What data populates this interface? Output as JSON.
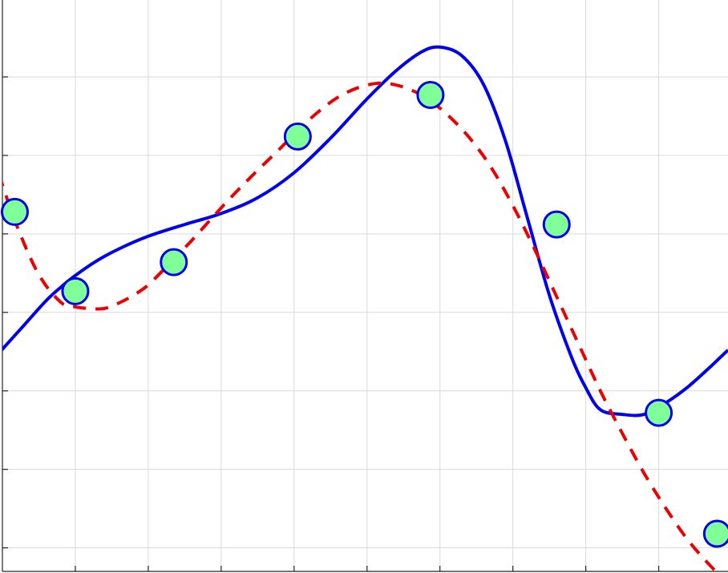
{
  "chart_data": {
    "type": "line",
    "title": "",
    "xlabel": "",
    "ylabel": "",
    "xlim": [
      0,
      9.95
    ],
    "ylim": [
      -0.3,
      6.98
    ],
    "grid": true,
    "xticks": [
      1,
      2,
      3,
      4,
      5,
      6,
      7,
      8,
      9
    ],
    "yticks": [
      0,
      1,
      2,
      3,
      4,
      5,
      6
    ],
    "series": [
      {
        "style": "solid-line",
        "color": "#0000ee",
        "x": [
          -0.05,
          0.3,
          0.6,
          0.8,
          1.0,
          1.3,
          1.6,
          2.0,
          2.5,
          3.0,
          3.5,
          4.0,
          4.5,
          5.0,
          5.4,
          5.75,
          6.0,
          6.3,
          6.6,
          6.9,
          7.2,
          7.5,
          7.8,
          8.0,
          8.2,
          8.5,
          8.8,
          9.1,
          9.4,
          9.7,
          9.95
        ],
        "y": [
          2.48,
          2.84,
          3.15,
          3.32,
          3.47,
          3.66,
          3.81,
          3.97,
          4.12,
          4.26,
          4.46,
          4.78,
          5.22,
          5.72,
          6.08,
          6.32,
          6.38,
          6.27,
          5.9,
          5.18,
          4.2,
          3.22,
          2.44,
          2.04,
          1.76,
          1.7,
          1.7,
          1.85,
          2.05,
          2.3,
          2.52
        ]
      },
      {
        "style": "dashed-line",
        "color": "#ee0000",
        "x": [
          -0.05,
          0.2,
          0.5,
          0.8,
          1.0,
          1.2,
          1.4,
          1.6,
          1.8,
          2.0,
          2.3,
          2.6,
          2.9,
          3.2,
          3.5,
          3.8,
          4.0,
          4.3,
          4.6,
          4.9,
          5.2,
          5.5,
          5.8,
          6.1,
          6.4,
          6.7,
          7.0,
          7.3,
          7.6,
          7.9,
          8.2,
          8.5,
          8.8,
          9.1,
          9.4,
          9.7,
          9.95
        ],
        "y": [
          4.76,
          4.1,
          3.48,
          3.13,
          3.07,
          3.05,
          3.05,
          3.12,
          3.22,
          3.35,
          3.63,
          3.92,
          4.23,
          4.53,
          4.81,
          5.08,
          5.27,
          5.53,
          5.74,
          5.87,
          5.92,
          5.87,
          5.74,
          5.52,
          5.23,
          4.85,
          4.36,
          3.8,
          3.2,
          2.6,
          2.0,
          1.46,
          0.95,
          0.5,
          0.1,
          -0.22,
          -0.45
        ]
      },
      {
        "style": "markers",
        "color": "#80ff99",
        "edge_color": "#0000ee",
        "x": [
          0.17,
          1.0,
          2.35,
          4.05,
          5.87,
          7.6,
          9.0,
          9.8
        ],
        "y": [
          4.28,
          3.27,
          3.64,
          5.24,
          5.77,
          4.12,
          1.72,
          0.18
        ]
      }
    ]
  }
}
